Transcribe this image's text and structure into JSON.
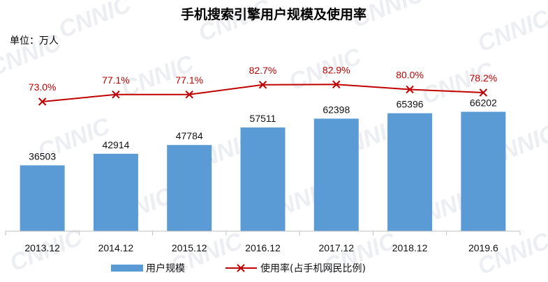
{
  "chart_data": {
    "type": "bar",
    "title": "手机搜索引擎用户规模及使用率",
    "unit_label": "单位：万人",
    "categories": [
      "2013.12",
      "2014.12",
      "2015.12",
      "2016.12",
      "2017.12",
      "2018.12",
      "2019.6"
    ],
    "series": [
      {
        "name": "用户规模",
        "type": "bar",
        "values": [
          36503,
          42914,
          47784,
          57511,
          62398,
          65396,
          66202
        ],
        "labels": [
          "36503",
          "42914",
          "47784",
          "57511",
          "62398",
          "65396",
          "66202"
        ],
        "color": "#5b9bd5"
      },
      {
        "name": "使用率(占手机网民比例)",
        "type": "line",
        "values": [
          73.0,
          77.1,
          77.1,
          82.7,
          82.9,
          80.0,
          78.2
        ],
        "labels": [
          "73.0%",
          "77.1%",
          "77.1%",
          "82.7%",
          "82.9%",
          "80.0%",
          "78.2%"
        ],
        "color": "#c00000",
        "marker": "x"
      }
    ],
    "watermark": "CNNIC",
    "legend_position": "bottom",
    "grid": false
  }
}
